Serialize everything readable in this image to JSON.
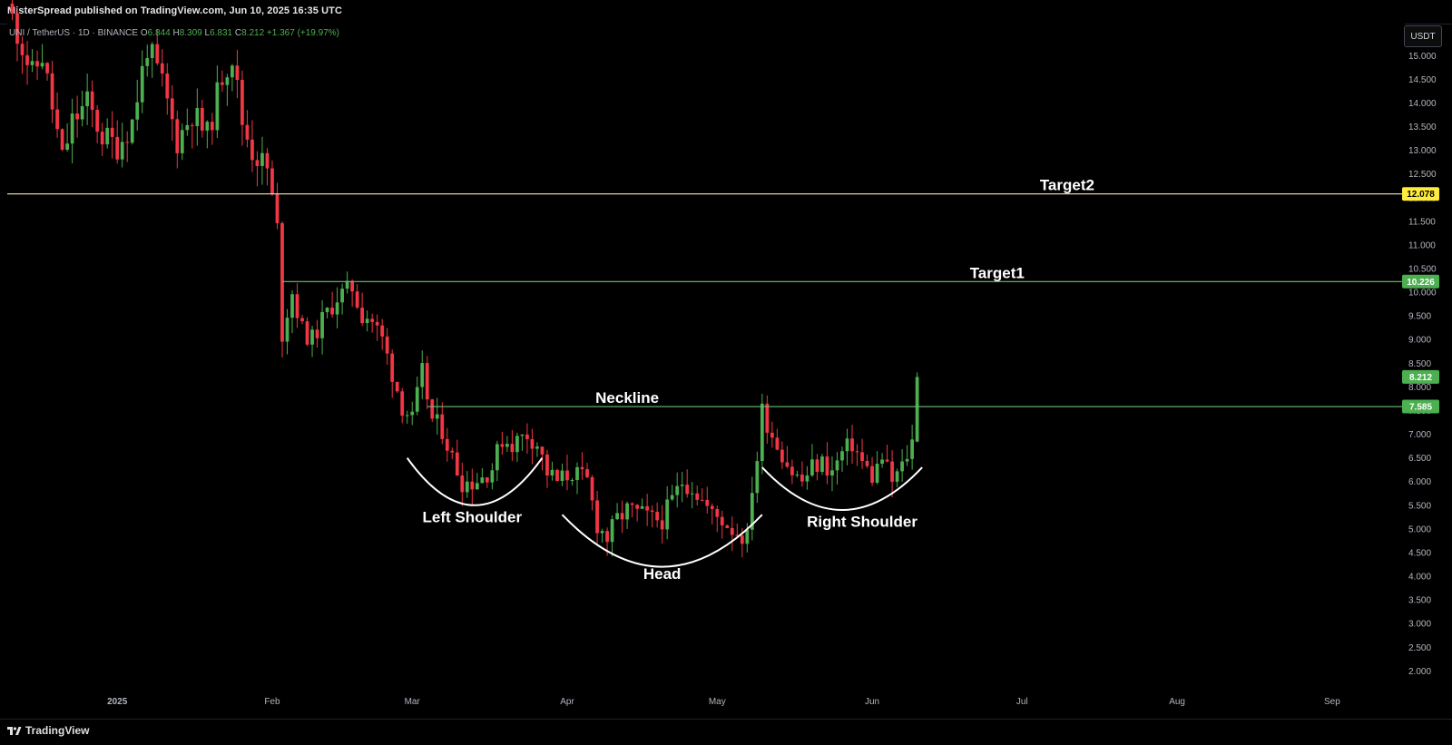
{
  "header": {
    "publisher": "MisterSpread published on TradingView.com, Jun 10, 2025 16:35 UTC"
  },
  "symbol": {
    "name": "UNI / TetherUS · 1D · BINANCE",
    "o_label": "O",
    "o_value": "6.844",
    "h_label": "H",
    "h_value": "8.309",
    "l_label": "L",
    "l_value": "6.831",
    "c_label": "C",
    "c_value": "8.212",
    "change": "+1.367 (+19.97%)"
  },
  "scale": {
    "currency": "USDT"
  },
  "footer": {
    "brand": "TradingView"
  },
  "colors": {
    "up": "#4caf50",
    "down": "#f23645",
    "target2": "#f5e6b4",
    "green_line": "#6fbf73",
    "label_yellow": "#ffeb3b",
    "label_green": "#4caf50"
  },
  "chart_data": {
    "type": "candlestick",
    "y_ticks": [
      "15.000",
      "14.500",
      "14.000",
      "13.500",
      "13.000",
      "12.500",
      "12.000",
      "11.500",
      "11.000",
      "10.500",
      "10.000",
      "9.500",
      "9.000",
      "8.500",
      "8.000",
      "7.500",
      "7.000",
      "6.500",
      "6.000",
      "5.500",
      "5.000",
      "4.500",
      "4.000",
      "3.500",
      "3.000",
      "2.500",
      "2.000"
    ],
    "ylim": [
      1.7,
      15.6
    ],
    "x_ticks": [
      "2025",
      "Feb",
      "Mar",
      "Apr",
      "May",
      "Jun",
      "Jul",
      "Aug",
      "Sep"
    ],
    "x_tick_dates": [
      "2025-01-01",
      "2025-02-01",
      "2025-03-01",
      "2025-04-01",
      "2025-05-01",
      "2025-06-01",
      "2025-07-01",
      "2025-08-01",
      "2025-09-01"
    ],
    "x_range_dates": [
      "2024-12-10",
      "2025-09-15"
    ],
    "levels": [
      {
        "name": "Target2",
        "value": 12.078,
        "label": "12.078",
        "color": "target2",
        "from_date": "2024-12-10",
        "text": "Target2",
        "text_date": "2025-07-10"
      },
      {
        "name": "Target1",
        "value": 10.226,
        "label": "10.226",
        "color": "green_line",
        "from_date": "2025-02-03",
        "text": "Target1",
        "text_date": "2025-06-26"
      },
      {
        "name": "Neckline",
        "value": 7.585,
        "label": "7.585",
        "color": "green_line",
        "from_date": "2025-03-04",
        "text": "Neckline",
        "text_date": "2025-04-13"
      }
    ],
    "last_price": {
      "value": 8.212,
      "label": "8.212"
    },
    "pattern": [
      {
        "name": "Left Shoulder",
        "date": "2025-03-13",
        "text_y": 5.45,
        "arc_from_date": "2025-02-28",
        "arc_to_date": "2025-03-27",
        "arc_top": 6.5,
        "arc_bottom": 5.5
      },
      {
        "name": "Head",
        "date": "2025-04-20",
        "text_y": 4.25,
        "arc_from_date": "2025-03-31",
        "arc_to_date": "2025-05-10",
        "arc_top": 5.3,
        "arc_bottom": 4.2
      },
      {
        "name": "Right Shoulder",
        "date": "2025-05-30",
        "text_y": 5.35,
        "arc_from_date": "2025-05-10",
        "arc_to_date": "2025-06-11",
        "arc_top": 6.3,
        "arc_bottom": 5.4
      }
    ],
    "close_path": [
      [
        "2024-12-11",
        15.8
      ],
      [
        "2024-12-13",
        15.2
      ],
      [
        "2024-12-15",
        14.6
      ],
      [
        "2024-12-17",
        15.0
      ],
      [
        "2024-12-19",
        13.9
      ],
      [
        "2024-12-21",
        12.8
      ],
      [
        "2024-12-23",
        13.6
      ],
      [
        "2024-12-26",
        14.0
      ],
      [
        "2024-12-29",
        13.3
      ],
      [
        "2025-01-01",
        13.1
      ],
      [
        "2025-01-04",
        13.6
      ],
      [
        "2025-01-07",
        15.2
      ],
      [
        "2025-01-10",
        14.4
      ],
      [
        "2025-01-13",
        13.2
      ],
      [
        "2025-01-16",
        13.8
      ],
      [
        "2025-01-19",
        13.3
      ],
      [
        "2025-01-22",
        14.6
      ],
      [
        "2025-01-24",
        15.0
      ],
      [
        "2025-01-26",
        13.6
      ],
      [
        "2025-01-28",
        13.0
      ],
      [
        "2025-01-31",
        12.6
      ],
      [
        "2025-02-02",
        11.3
      ],
      [
        "2025-02-03",
        9.2
      ],
      [
        "2025-02-05",
        10.0
      ],
      [
        "2025-02-07",
        9.2
      ],
      [
        "2025-02-09",
        9.0
      ],
      [
        "2025-02-11",
        9.4
      ],
      [
        "2025-02-14",
        9.9
      ],
      [
        "2025-02-17",
        10.1
      ],
      [
        "2025-02-19",
        9.6
      ],
      [
        "2025-02-21",
        9.4
      ],
      [
        "2025-02-23",
        9.0
      ],
      [
        "2025-02-25",
        8.3
      ],
      [
        "2025-02-27",
        7.6
      ],
      [
        "2025-03-01",
        7.3
      ],
      [
        "2025-03-03",
        8.3
      ],
      [
        "2025-03-05",
        7.3
      ],
      [
        "2025-03-07",
        7.1
      ],
      [
        "2025-03-09",
        6.5
      ],
      [
        "2025-03-11",
        6.0
      ],
      [
        "2025-03-13",
        6.0
      ],
      [
        "2025-03-15",
        6.1
      ],
      [
        "2025-03-17",
        6.3
      ],
      [
        "2025-03-19",
        6.9
      ],
      [
        "2025-03-21",
        6.8
      ],
      [
        "2025-03-24",
        7.0
      ],
      [
        "2025-03-26",
        6.8
      ],
      [
        "2025-03-28",
        6.2
      ],
      [
        "2025-03-30",
        6.0
      ],
      [
        "2025-04-02",
        6.2
      ],
      [
        "2025-04-05",
        6.0
      ],
      [
        "2025-04-07",
        5.1
      ],
      [
        "2025-04-09",
        4.8
      ],
      [
        "2025-04-11",
        5.2
      ],
      [
        "2025-04-13",
        5.4
      ],
      [
        "2025-04-16",
        5.3
      ],
      [
        "2025-04-18",
        5.2
      ],
      [
        "2025-04-20",
        5.2
      ],
      [
        "2025-04-22",
        5.6
      ],
      [
        "2025-04-24",
        6.0
      ],
      [
        "2025-04-26",
        5.9
      ],
      [
        "2025-04-28",
        5.6
      ],
      [
        "2025-04-30",
        5.3
      ],
      [
        "2025-05-02",
        5.2
      ],
      [
        "2025-05-04",
        5.0
      ],
      [
        "2025-05-07",
        4.8
      ],
      [
        "2025-05-08",
        5.9
      ],
      [
        "2025-05-09",
        6.5
      ],
      [
        "2025-05-10",
        7.5
      ],
      [
        "2025-05-12",
        7.0
      ],
      [
        "2025-05-14",
        6.6
      ],
      [
        "2025-05-16",
        6.2
      ],
      [
        "2025-05-18",
        6.0
      ],
      [
        "2025-05-20",
        6.3
      ],
      [
        "2025-05-22",
        6.4
      ],
      [
        "2025-05-24",
        6.2
      ],
      [
        "2025-05-26",
        6.6
      ],
      [
        "2025-05-28",
        6.8
      ],
      [
        "2025-05-30",
        6.4
      ],
      [
        "2025-06-01",
        6.1
      ],
      [
        "2025-06-03",
        6.5
      ],
      [
        "2025-06-05",
        6.0
      ],
      [
        "2025-06-07",
        6.3
      ],
      [
        "2025-06-09",
        6.84
      ],
      [
        "2025-06-10",
        8.21
      ]
    ]
  }
}
